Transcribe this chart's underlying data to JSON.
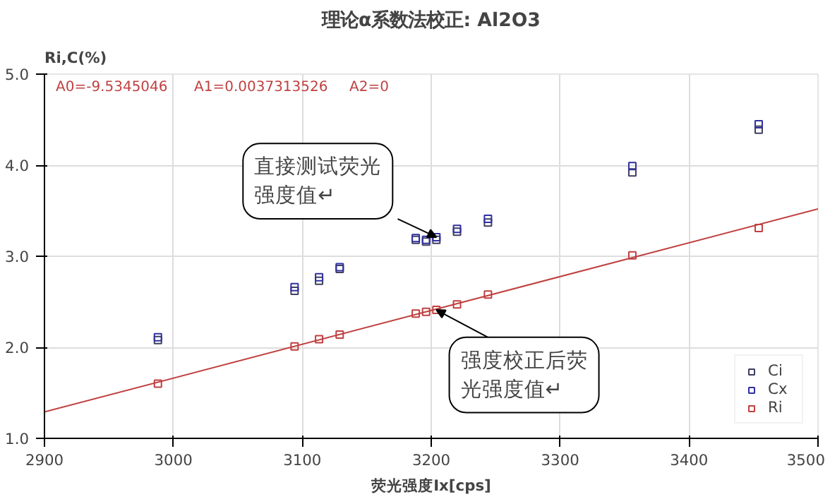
{
  "chart_data": {
    "type": "scatter",
    "title": "理论α系数法校正: Al2O3",
    "xlabel": "荧光强度Ix[cps]",
    "ylabel": "Ri,C(%)",
    "xlim": [
      2900,
      3500
    ],
    "ylim": [
      1.0,
      5.0
    ],
    "xticks": [
      2900,
      3000,
      3100,
      3200,
      3300,
      3400,
      3500
    ],
    "yticks": [
      {
        "value": 1.0,
        "label": "1.0"
      },
      {
        "value": 2.0,
        "label": "2.0"
      },
      {
        "value": 3.0,
        "label": "3.0"
      },
      {
        "value": 4.0,
        "label": "4.0"
      },
      {
        "value": 5.0,
        "label": "5.0"
      }
    ],
    "x": [
      2988,
      3094,
      3113,
      3129,
      3188,
      3196,
      3204,
      3220,
      3244,
      3356,
      3454
    ],
    "series": [
      {
        "name": "Ci",
        "color": "#404060",
        "marker": "square",
        "values": [
          2.08,
          2.62,
          2.73,
          2.86,
          3.18,
          3.16,
          3.18,
          3.27,
          3.37,
          3.92,
          4.39
        ]
      },
      {
        "name": "Cx",
        "color": "#3030a0",
        "marker": "square",
        "values": [
          2.11,
          2.66,
          2.77,
          2.88,
          3.2,
          3.18,
          3.21,
          3.3,
          3.41,
          3.99,
          4.45
        ]
      },
      {
        "name": "Ri",
        "color": "#c04040",
        "marker": "square",
        "values": [
          1.6,
          2.01,
          2.09,
          2.14,
          2.37,
          2.39,
          2.41,
          2.47,
          2.58,
          3.01,
          3.31
        ]
      },
      {
        "type": "line",
        "color": "#c04040",
        "x": [
          2900,
          3500
        ],
        "values": [
          1.29,
          3.52
        ]
      }
    ],
    "grid": true,
    "legend": "bottom right",
    "annotations": [
      "A0=-9.5345046",
      "A1=0.0037313526",
      "A2=0",
      {
        "text": "直接测试荧光强度值↵",
        "x": 3204,
        "y": 3.21
      },
      {
        "text": "强度校正后荧光强度值↵",
        "x": 3204,
        "y": 2.41
      }
    ]
  }
}
